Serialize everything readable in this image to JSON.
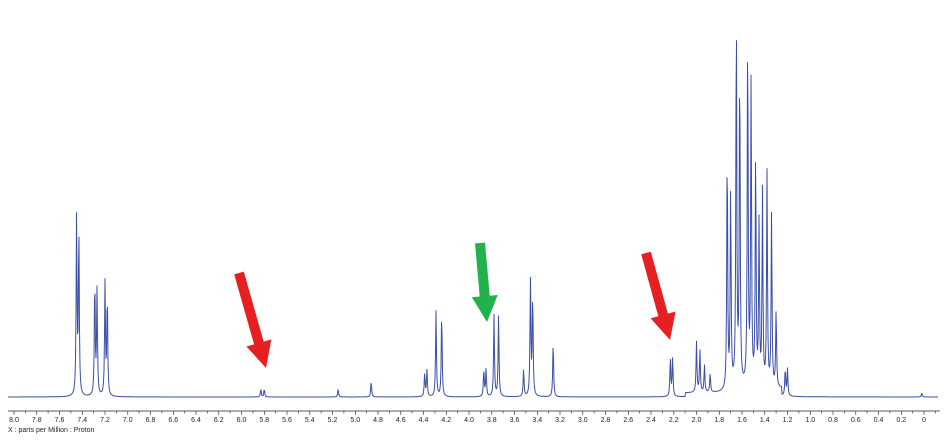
{
  "chart_data": {
    "type": "line",
    "title": "",
    "xlabel": "X : parts per Million : Proton",
    "ylabel": "",
    "xlim": [
      8.1,
      -0.1
    ],
    "x_reversed": true,
    "grid": false,
    "colors": {
      "spectrum": "#3a4fa8",
      "arrow_red": "#e62020",
      "arrow_green": "#22b24c",
      "axis": "#222222"
    },
    "x_ticks": [
      "8.0",
      "7.8",
      "7.6",
      "7.4",
      "7.2",
      "7.0",
      "6.8",
      "6.6",
      "6.4",
      "6.2",
      "6.0",
      "5.8",
      "5.6",
      "5.4",
      "5.2",
      "5.0",
      "4.8",
      "4.6",
      "4.4",
      "4.2",
      "4.0",
      "3.8",
      "3.6",
      "3.4",
      "3.2",
      "3.0",
      "2.8",
      "2.6",
      "2.4",
      "2.2",
      "2.0",
      "1.8",
      "1.6",
      "1.4",
      "1.2",
      "1.0",
      "0.8",
      "0.6",
      "0.4",
      "0.2",
      "0"
    ],
    "series": [
      {
        "peaks": [
          {
            "ppm": 7.45,
            "intensity": 0.46
          },
          {
            "ppm": 7.43,
            "intensity": 0.43
          },
          {
            "ppm": 7.29,
            "intensity": 0.3
          },
          {
            "ppm": 7.27,
            "intensity": 0.27
          },
          {
            "ppm": 7.2,
            "intensity": 0.29
          },
          {
            "ppm": 7.18,
            "intensity": 0.26
          },
          {
            "ppm": 5.83,
            "intensity": 0.02
          },
          {
            "ppm": 5.8,
            "intensity": 0.02
          },
          {
            "ppm": 5.15,
            "intensity": 0.02
          },
          {
            "ppm": 4.86,
            "intensity": 0.04
          },
          {
            "ppm": 4.39,
            "intensity": 0.06
          },
          {
            "ppm": 4.37,
            "intensity": 0.07
          },
          {
            "ppm": 4.29,
            "intensity": 0.22
          },
          {
            "ppm": 4.24,
            "intensity": 0.22
          },
          {
            "ppm": 3.87,
            "intensity": 0.07
          },
          {
            "ppm": 3.85,
            "intensity": 0.07
          },
          {
            "ppm": 3.78,
            "intensity": 0.21
          },
          {
            "ppm": 3.74,
            "intensity": 0.21
          },
          {
            "ppm": 3.52,
            "intensity": 0.07
          },
          {
            "ppm": 3.46,
            "intensity": 0.3
          },
          {
            "ppm": 3.44,
            "intensity": 0.26
          },
          {
            "ppm": 3.26,
            "intensity": 0.14
          },
          {
            "ppm": 2.23,
            "intensity": 0.1
          },
          {
            "ppm": 2.21,
            "intensity": 0.1
          },
          {
            "ppm": 2.0,
            "intensity": 0.13
          },
          {
            "ppm": 1.97,
            "intensity": 0.11
          },
          {
            "ppm": 1.93,
            "intensity": 0.07
          },
          {
            "ppm": 1.88,
            "intensity": 0.05
          },
          {
            "ppm": 1.73,
            "intensity": 0.63
          },
          {
            "ppm": 1.7,
            "intensity": 0.52
          },
          {
            "ppm": 1.65,
            "intensity": 0.98
          },
          {
            "ppm": 1.62,
            "intensity": 0.85
          },
          {
            "ppm": 1.55,
            "intensity": 0.92
          },
          {
            "ppm": 1.52,
            "intensity": 0.8
          },
          {
            "ppm": 1.48,
            "intensity": 0.6
          },
          {
            "ppm": 1.45,
            "intensity": 0.42
          },
          {
            "ppm": 1.42,
            "intensity": 0.5
          },
          {
            "ppm": 1.38,
            "intensity": 0.55
          },
          {
            "ppm": 1.34,
            "intensity": 0.45
          },
          {
            "ppm": 1.3,
            "intensity": 0.2
          },
          {
            "ppm": 1.22,
            "intensity": 0.07
          },
          {
            "ppm": 1.2,
            "intensity": 0.07
          },
          {
            "ppm": 0.02,
            "intensity": 0.01
          }
        ]
      }
    ],
    "annotations": [
      {
        "kind": "arrow",
        "color": "red",
        "ppm": 5.81
      },
      {
        "kind": "arrow",
        "color": "green",
        "ppm": 3.86
      },
      {
        "kind": "arrow",
        "color": "red",
        "ppm": 2.2
      }
    ]
  }
}
